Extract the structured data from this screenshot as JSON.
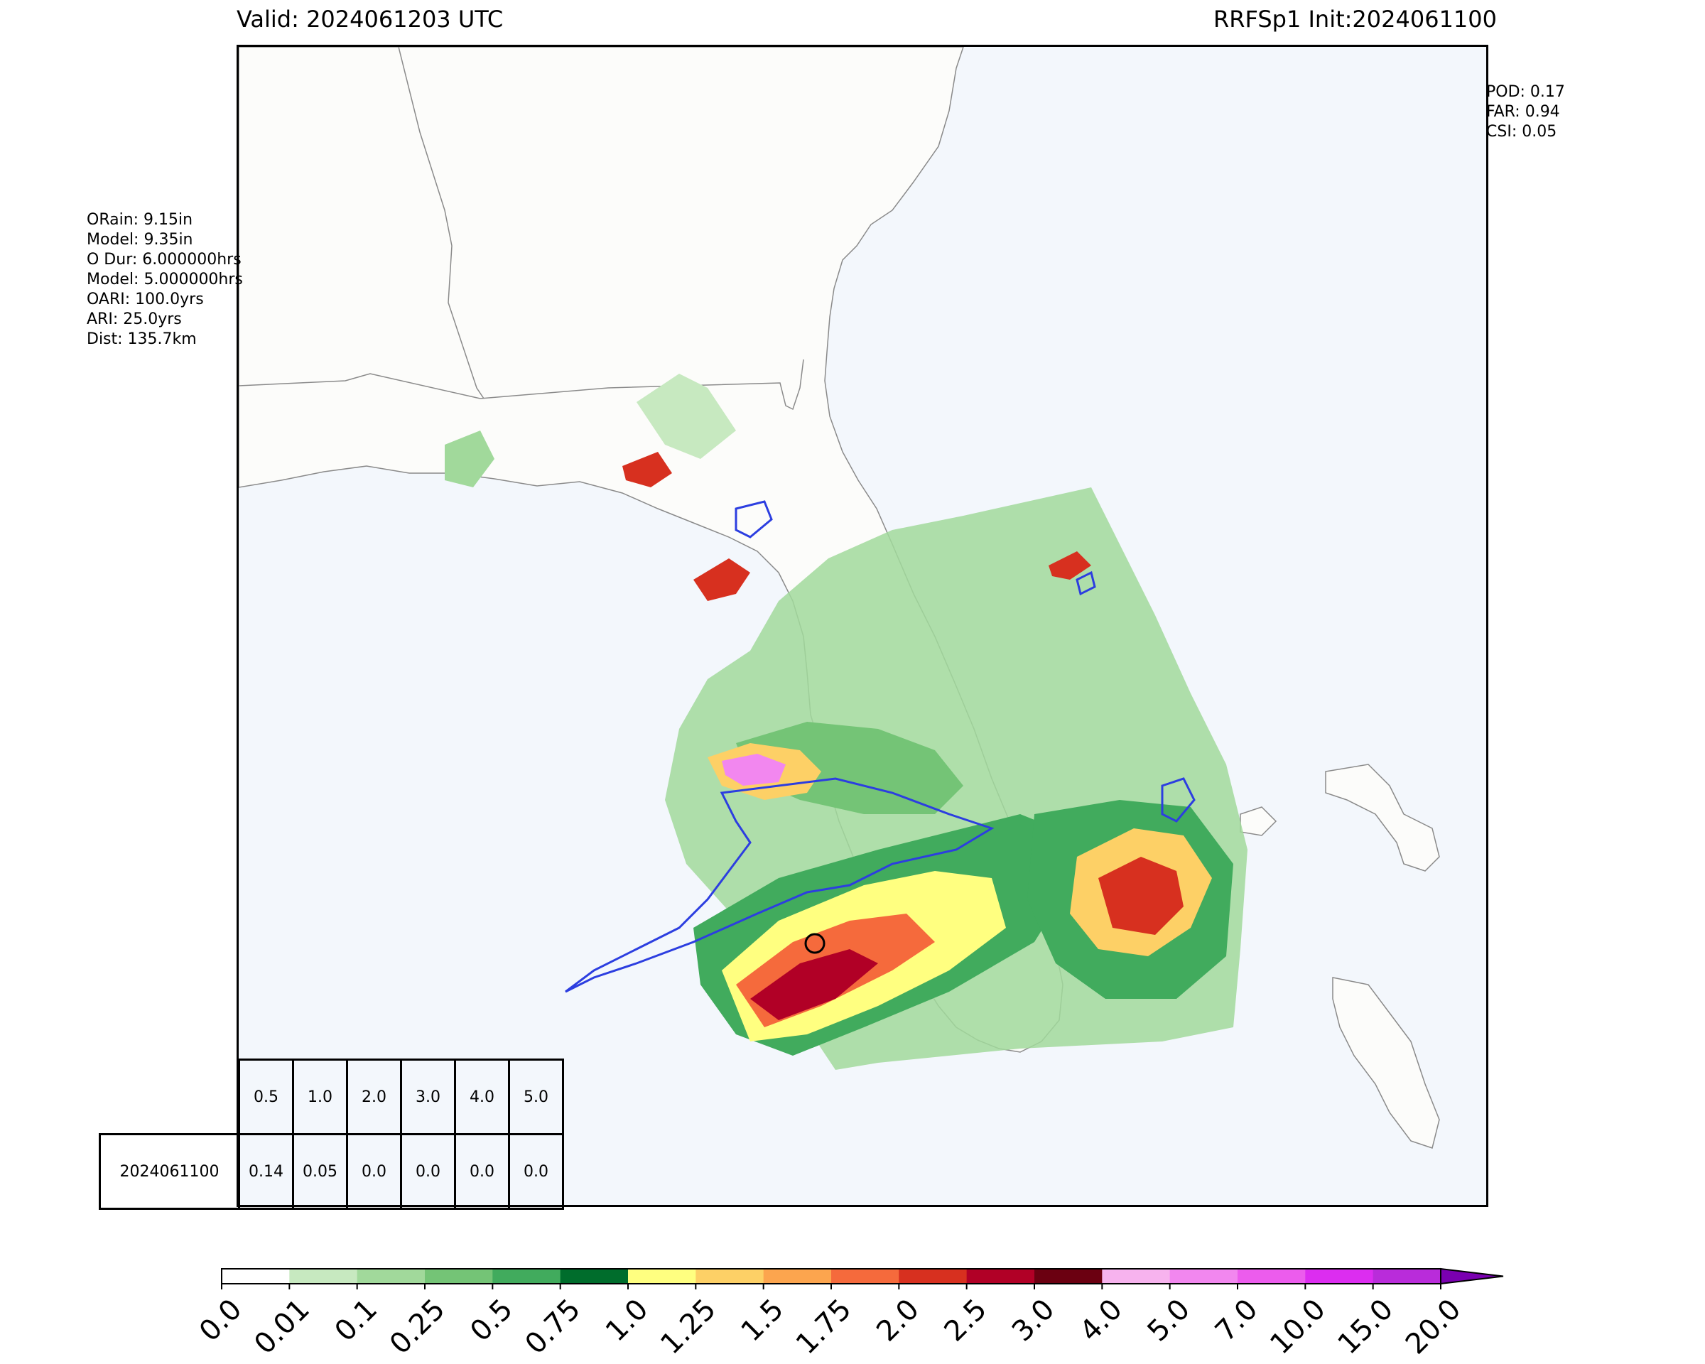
{
  "title_left": "Valid: 2024061203 UTC",
  "title_right": "RRFSp1 Init:2024061100",
  "verification_stats": [
    "POD: 0.17",
    "FAR: 0.94",
    "CSI: 0.05"
  ],
  "point_stats": [
    "ORain: 9.15in",
    "Model: 9.35in",
    "O Dur: 6.000000hrs",
    "Model: 5.000000hrs",
    "OARI: 100.0yrs",
    "ARI: 25.0yrs",
    "Dist: 135.7km"
  ],
  "ari_table": {
    "thresholds": [
      "0.5",
      "1.0",
      "2.0",
      "3.0",
      "4.0",
      "5.0"
    ],
    "row_label": "2024061100",
    "values": [
      "0.14",
      "0.05",
      "0.0",
      "0.0",
      "0.0",
      "0.0"
    ]
  },
  "colorbar": {
    "tick_labels": [
      "0.0",
      "0.01",
      "0.1",
      "0.25",
      "0.5",
      "0.75",
      "1.0",
      "1.25",
      "1.5",
      "1.75",
      "2.0",
      "2.5",
      "3.0",
      "4.0",
      "5.0",
      "7.0",
      "10.0",
      "15.0",
      "20.0"
    ],
    "colors": [
      "#ffffff",
      "#c7e9c0",
      "#a1d99b",
      "#74c476",
      "#41ab5d",
      "#006d2c",
      "#ffff80",
      "#fdd066",
      "#fca54e",
      "#f56a3c",
      "#d7301f",
      "#b10026",
      "#6b0011",
      "#f7b3ee",
      "#f287ef",
      "#ec5ced",
      "#dc2df0",
      "#b92cda"
    ],
    "extend_color": "#7a00b0"
  },
  "colors": {
    "ocean": "#f3f7fc",
    "land": "#fcfcfa",
    "contour_outline": "#2c3ee0",
    "border_lines": "#8a8a8a"
  }
}
